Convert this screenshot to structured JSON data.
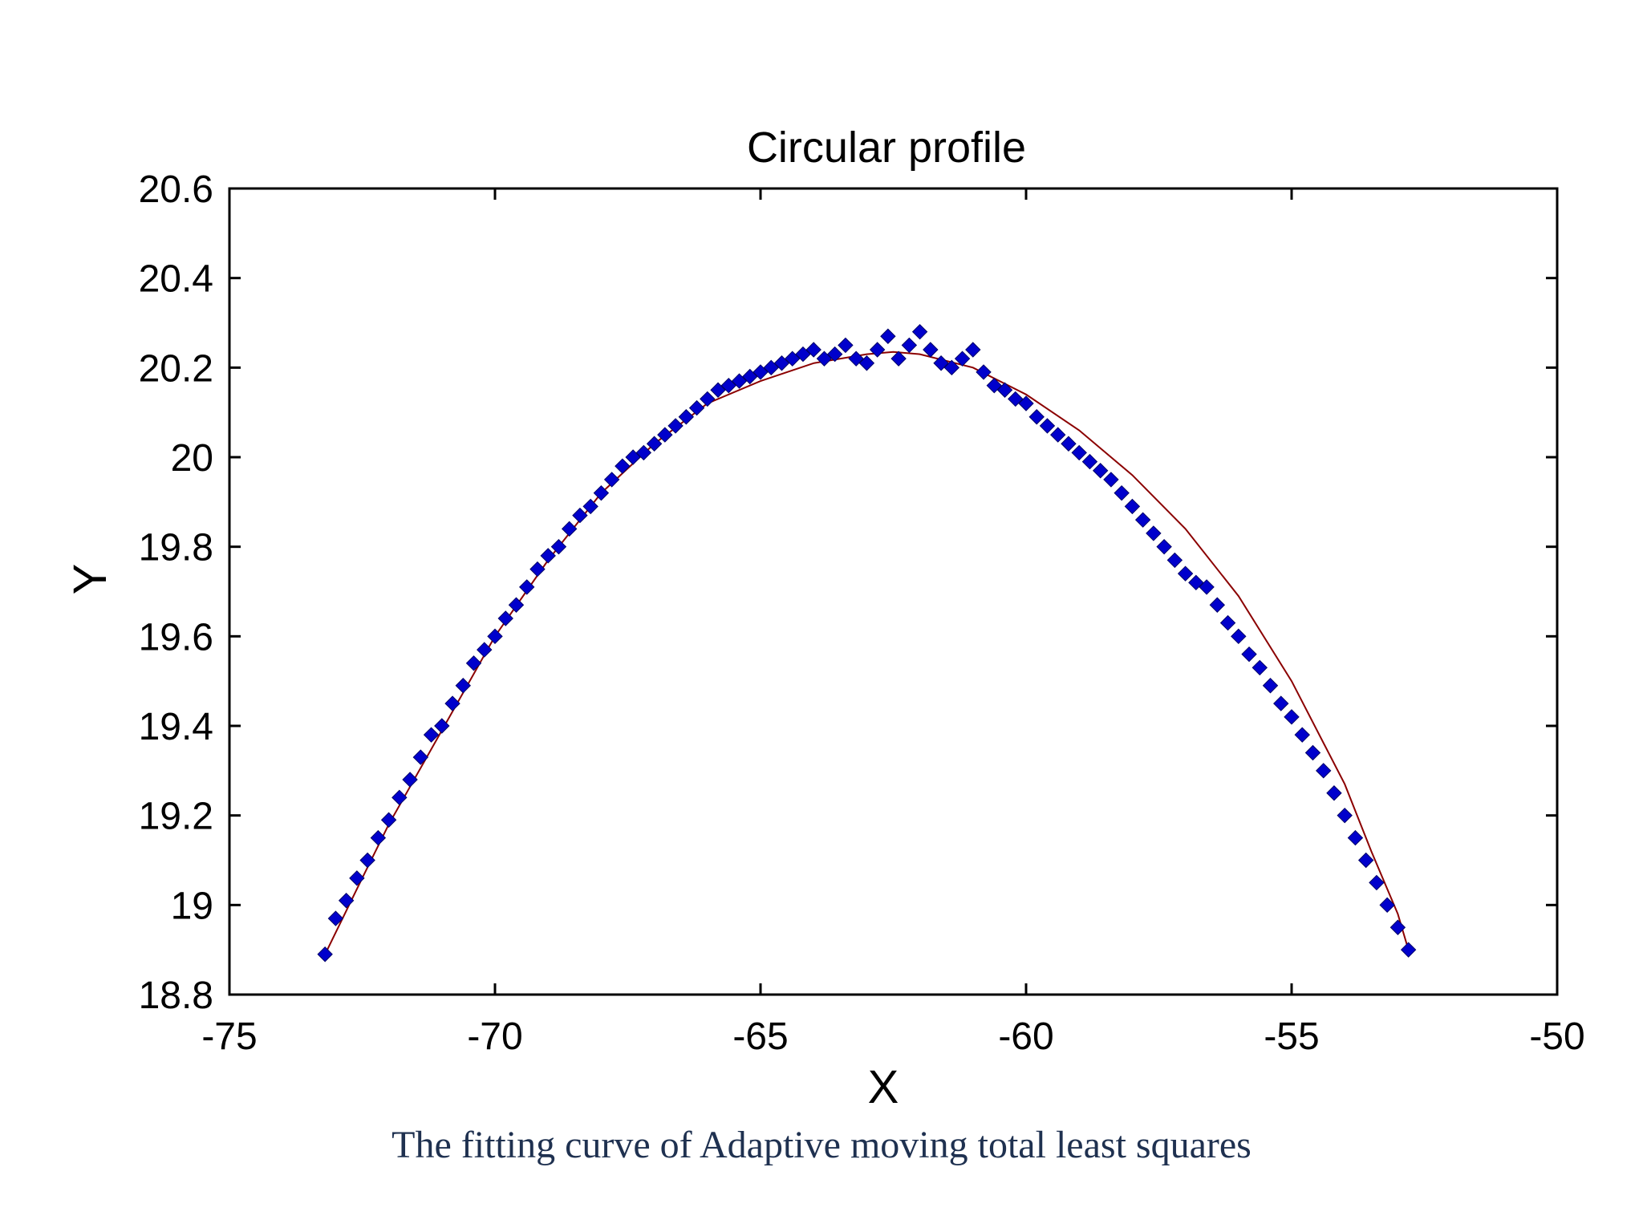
{
  "caption": "The fitting curve of Adaptive moving total least squares",
  "colors": {
    "marker": "#0000cc",
    "fit_line": "#8b0000",
    "axes": "#000000",
    "caption": "#1f3150"
  },
  "chart_data": {
    "type": "scatter",
    "title": "Circular profile",
    "xlabel": "X",
    "ylabel": "Y",
    "xlim": [
      -75,
      -50
    ],
    "ylim": [
      18.8,
      20.6
    ],
    "x_ticks": [
      -75,
      -70,
      -65,
      -60,
      -55,
      -50
    ],
    "x_tick_labels": [
      "-75",
      "-70",
      "-65",
      "-60",
      "-55",
      "-50"
    ],
    "y_ticks": [
      18.8,
      19.0,
      19.2,
      19.4,
      19.6,
      19.8,
      20.0,
      20.2,
      20.4,
      20.6
    ],
    "y_tick_labels": [
      "18.8",
      "19",
      "19.2",
      "19.4",
      "19.6",
      "19.8",
      "20",
      "20.2",
      "20.4",
      "20.6"
    ],
    "grid": false,
    "legend": "none",
    "series": [
      {
        "kind": "points",
        "marker": "diamond",
        "x": [
          -73.2,
          -73.0,
          -72.8,
          -72.6,
          -72.4,
          -72.2,
          -72.0,
          -71.8,
          -71.6,
          -71.4,
          -71.2,
          -71.0,
          -70.8,
          -70.6,
          -70.4,
          -70.2,
          -70.0,
          -69.8,
          -69.6,
          -69.4,
          -69.2,
          -69.0,
          -68.8,
          -68.6,
          -68.4,
          -68.2,
          -68.0,
          -67.8,
          -67.6,
          -67.4,
          -67.2,
          -67.0,
          -66.8,
          -66.6,
          -66.4,
          -66.2,
          -66.0,
          -65.8,
          -65.6,
          -65.4,
          -65.2,
          -65.0,
          -64.8,
          -64.6,
          -64.4,
          -64.2,
          -64.0,
          -63.8,
          -63.6,
          -63.4,
          -63.2,
          -63.0,
          -62.8,
          -62.6,
          -62.4,
          -62.2,
          -62.0,
          -61.8,
          -61.6,
          -61.4,
          -61.2,
          -61.0,
          -60.8,
          -60.6,
          -60.4,
          -60.2,
          -60.0,
          -59.8,
          -59.6,
          -59.4,
          -59.2,
          -59.0,
          -58.8,
          -58.6,
          -58.4,
          -58.2,
          -58.0,
          -57.8,
          -57.6,
          -57.4,
          -57.2,
          -57.0,
          -56.8,
          -56.6,
          -56.4,
          -56.2,
          -56.0,
          -55.8,
          -55.6,
          -55.4,
          -55.2,
          -55.0,
          -54.8,
          -54.6,
          -54.4,
          -54.2,
          -54.0,
          -53.8,
          -53.6,
          -53.4,
          -53.2,
          -53.0,
          -52.8
        ],
        "y": [
          18.89,
          18.97,
          19.01,
          19.06,
          19.1,
          19.15,
          19.19,
          19.24,
          19.28,
          19.33,
          19.38,
          19.4,
          19.45,
          19.49,
          19.54,
          19.57,
          19.6,
          19.64,
          19.67,
          19.71,
          19.75,
          19.78,
          19.8,
          19.84,
          19.87,
          19.89,
          19.92,
          19.95,
          19.98,
          20.0,
          20.01,
          20.03,
          20.05,
          20.07,
          20.09,
          20.11,
          20.13,
          20.15,
          20.16,
          20.17,
          20.18,
          20.19,
          20.2,
          20.21,
          20.22,
          20.23,
          20.24,
          20.22,
          20.23,
          20.25,
          20.22,
          20.21,
          20.24,
          20.27,
          20.22,
          20.25,
          20.28,
          20.24,
          20.21,
          20.2,
          20.22,
          20.24,
          20.19,
          20.16,
          20.15,
          20.13,
          20.12,
          20.09,
          20.07,
          20.05,
          20.03,
          20.01,
          19.99,
          19.97,
          19.95,
          19.92,
          19.89,
          19.86,
          19.83,
          19.8,
          19.77,
          19.74,
          19.72,
          19.71,
          19.67,
          19.63,
          19.6,
          19.56,
          19.53,
          19.49,
          19.45,
          19.42,
          19.38,
          19.34,
          19.3,
          19.25,
          19.2,
          19.15,
          19.1,
          19.05,
          19.0,
          18.95,
          18.9
        ]
      },
      {
        "kind": "fit-line",
        "x": [
          -73.2,
          -72.5,
          -72.0,
          -71.0,
          -70.0,
          -69.0,
          -68.0,
          -67.0,
          -66.0,
          -65.0,
          -64.0,
          -63.0,
          -62.5,
          -62.0,
          -61.0,
          -60.0,
          -59.0,
          -58.0,
          -57.0,
          -56.0,
          -55.0,
          -54.0,
          -53.5,
          -53.0,
          -52.8
        ],
        "y": [
          18.89,
          19.06,
          19.18,
          19.39,
          19.6,
          19.77,
          19.92,
          20.03,
          20.12,
          20.17,
          20.21,
          20.23,
          20.235,
          20.23,
          20.2,
          20.14,
          20.06,
          19.96,
          19.84,
          19.69,
          19.5,
          19.27,
          19.12,
          18.98,
          18.9
        ]
      }
    ]
  }
}
